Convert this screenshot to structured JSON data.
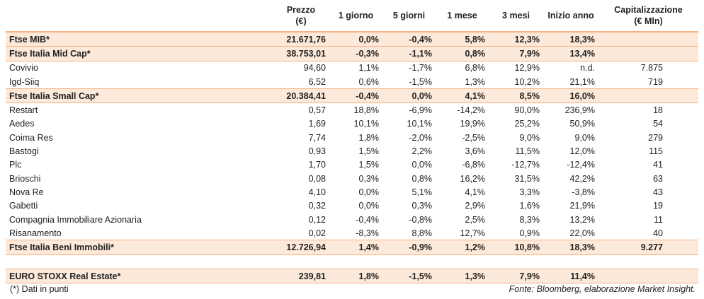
{
  "header": {
    "columns": [
      [
        "Prezzo",
        "(€)"
      ],
      [
        "1 giorno"
      ],
      [
        "5 giorni"
      ],
      [
        "1 mese"
      ],
      [
        "3 mesi"
      ],
      [
        "Inizio anno"
      ],
      [
        "Capitalizzazione",
        "(€ Mln)"
      ]
    ]
  },
  "table": {
    "rows": [
      {
        "bold": true,
        "cells": [
          "Ftse MIB*",
          "21.671,76",
          "0,0%",
          "-0,4%",
          "5,8%",
          "12,3%",
          "18,3%"
        ]
      },
      {
        "bold": true,
        "cells": [
          "Ftse Italia Mid Cap*",
          "38.753,01",
          "-0,3%",
          "-1,1%",
          "0,8%",
          "7,9%",
          "13,4%"
        ]
      },
      {
        "bold": false,
        "cells": [
          "Covivio",
          "94,60",
          "1,1%",
          "-1,7%",
          "6,8%",
          "12,9%",
          "n.d.",
          "7.875"
        ]
      },
      {
        "bold": false,
        "cells": [
          "Igd-Siiq",
          "6,52",
          "0,6%",
          "-1,5%",
          "1,3%",
          "10,2%",
          "21,1%",
          "719"
        ]
      },
      {
        "bold": true,
        "cells": [
          "Ftse Italia Small Cap*",
          "20.384,41",
          "-0,4%",
          "0,0%",
          "4,1%",
          "8,5%",
          "16,0%"
        ]
      },
      {
        "bold": false,
        "cells": [
          "Restart",
          "0,57",
          "18,8%",
          "-6,9%",
          "-14,2%",
          "90,0%",
          "236,9%",
          "18"
        ]
      },
      {
        "bold": false,
        "cells": [
          "Aedes",
          "1,69",
          "10,1%",
          "10,1%",
          "19,9%",
          "25,2%",
          "50,9%",
          "54"
        ]
      },
      {
        "bold": false,
        "cells": [
          "Coima Res",
          "7,74",
          "1,8%",
          "-2,0%",
          "-2,5%",
          "9,0%",
          "9,0%",
          "279"
        ]
      },
      {
        "bold": false,
        "cells": [
          "Bastogi",
          "0,93",
          "1,5%",
          "2,2%",
          "3,6%",
          "11,5%",
          "12,0%",
          "115"
        ]
      },
      {
        "bold": false,
        "cells": [
          "Plc",
          "1,70",
          "1,5%",
          "0,0%",
          "-6,8%",
          "-12,7%",
          "-12,4%",
          "41"
        ]
      },
      {
        "bold": false,
        "cells": [
          "Brioschi",
          "0,08",
          "0,3%",
          "0,8%",
          "16,2%",
          "31,5%",
          "42,2%",
          "63"
        ]
      },
      {
        "bold": false,
        "cells": [
          "Nova Re",
          "4,10",
          "0,0%",
          "5,1%",
          "4,1%",
          "3,3%",
          "-3,8%",
          "43"
        ]
      },
      {
        "bold": false,
        "cells": [
          "Gabetti",
          "0,32",
          "0,0%",
          "0,3%",
          "2,9%",
          "1,6%",
          "21,9%",
          "19"
        ]
      },
      {
        "bold": false,
        "cells": [
          "Compagnia Immobiliare Azionaria",
          "0,12",
          "-0,4%",
          "-0,8%",
          "2,5%",
          "8,3%",
          "13,2%",
          "11"
        ]
      },
      {
        "bold": false,
        "cells": [
          "Risanamento",
          "0,02",
          "-8,3%",
          "8,8%",
          "12,7%",
          "0,9%",
          "22,0%",
          "40"
        ]
      },
      {
        "bold": true,
        "cells": [
          "Ftse Italia Beni Immobili*",
          "12.726,94",
          "1,4%",
          "-0,9%",
          "1,2%",
          "10,8%",
          "18,3%",
          "9.277"
        ]
      }
    ],
    "benchmark": {
      "bold": true,
      "cells": [
        "EURO STOXX Real Estate*",
        "239,81",
        "1,8%",
        "-1,5%",
        "1,3%",
        "7,9%",
        "11,4%"
      ]
    }
  },
  "footer": {
    "note": "(*) Dati in punti",
    "source": "Fonte: Bloomberg, elaborazione Market Insight."
  }
}
